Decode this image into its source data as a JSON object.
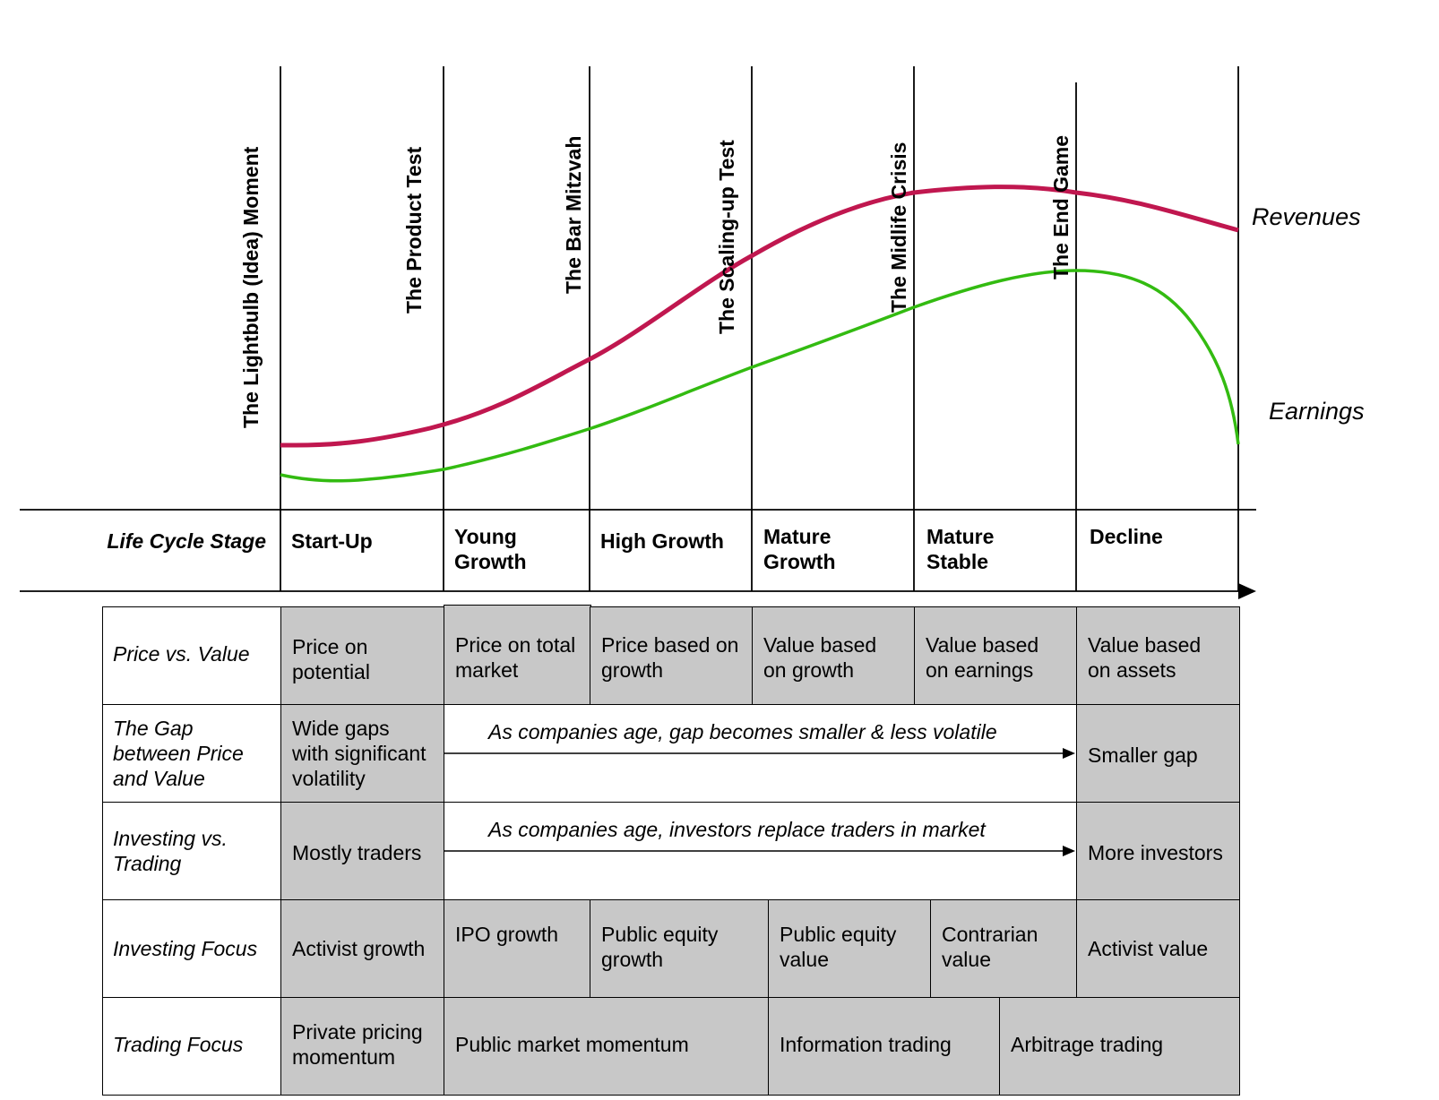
{
  "milestones": [
    "The Lightbulb (Idea) Moment",
    "The Product Test",
    "The Bar Mitzvah",
    "The Scaling-up Test",
    "The Midlife Crisis",
    "The End Game"
  ],
  "curves": {
    "revenues_label": "Revenues",
    "earnings_label": "Earnings",
    "revenues_color": "#c0174f",
    "earnings_color": "#33bb11"
  },
  "stage_row": {
    "header": "Life Cycle Stage",
    "stages": [
      "Start-Up",
      "Young\nGrowth",
      "High Growth",
      "Mature\nGrowth",
      "Mature\nStable",
      "Decline"
    ]
  },
  "rows": {
    "price_vs_value": {
      "label": "Price vs. Value",
      "cells": [
        "Price on\npotential",
        "Price on total\nmarket",
        "Price based on\ngrowth",
        "Value based\non growth",
        "Value based\non earnings",
        "Value based\non assets"
      ]
    },
    "gap": {
      "label": "The Gap\nbetween Price\nand Value",
      "first": "Wide gaps\nwith significant\nvolatility",
      "arrow_text": "As companies age, gap becomes smaller & less volatile",
      "last": "Smaller gap"
    },
    "investing_vs_trading": {
      "label": "Investing vs.\nTrading",
      "first": "Mostly traders",
      "arrow_text": "As companies age, investors replace traders in market",
      "last": "More investors"
    },
    "investing_focus": {
      "label": "Investing Focus",
      "cells": [
        "Activist growth",
        "IPO growth",
        "Public equity\ngrowth",
        "Public equity\nvalue",
        "Contrarian\nvalue",
        "Activist value"
      ]
    },
    "trading_focus": {
      "label": "Trading Focus",
      "cells": [
        "Private pricing\nmomentum",
        "Public market momentum",
        "Information trading",
        "Arbitrage trading"
      ]
    }
  },
  "colors": {
    "cell_fill": "#c8c8c8",
    "line": "#000000"
  }
}
